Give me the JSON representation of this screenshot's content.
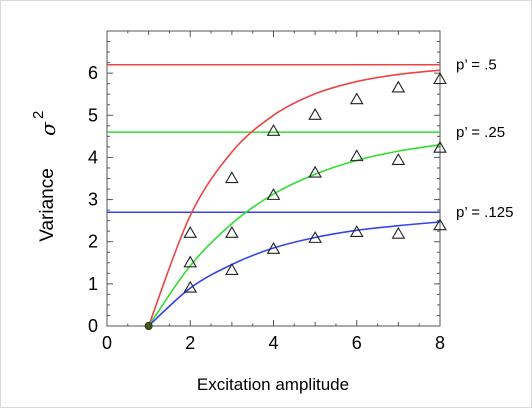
{
  "chart_data": {
    "type": "line",
    "xlabel": "Excitation amplitude",
    "ylabel": "Variance",
    "ylabel_symbol": "σ",
    "ylabel_exponent": "2",
    "xlim": [
      0,
      8
    ],
    "ylim": [
      0,
      7
    ],
    "x_ticks": [
      "0",
      "2",
      "4",
      "6",
      "8"
    ],
    "y_ticks": [
      "0",
      "1",
      "2",
      "3",
      "4",
      "5",
      "6"
    ],
    "grid": false,
    "legend": "right, inline labels",
    "series": [
      {
        "label": "p’ = .5",
        "color": "#ee4444",
        "asymptote": 6.2,
        "curve_x": [
          1,
          2,
          3,
          4,
          5,
          6,
          7,
          8
        ],
        "curve_y": [
          0.0,
          2.62,
          4.13,
          5.0,
          5.51,
          5.8,
          5.97,
          6.07
        ],
        "points_x": [
          2,
          3,
          4,
          5,
          6,
          7,
          8
        ],
        "points_y": [
          2.2,
          3.5,
          4.62,
          5.0,
          5.37,
          5.65,
          5.85
        ]
      },
      {
        "label": "p’ = .25",
        "color": "#33dd33",
        "asymptote": 4.6,
        "curve_x": [
          1,
          2,
          3,
          4,
          5,
          6,
          7,
          8
        ],
        "curve_y": [
          0.0,
          1.43,
          2.43,
          3.13,
          3.6,
          3.93,
          4.15,
          4.3
        ],
        "points_x": [
          2,
          3,
          4,
          5,
          6,
          7,
          8
        ],
        "points_y": [
          1.5,
          2.2,
          3.1,
          3.63,
          4.02,
          3.93,
          4.22
        ]
      },
      {
        "label": "p’ = .125",
        "color": "#3344ee",
        "asymptote": 2.7,
        "curve_x": [
          1,
          2,
          3,
          4,
          5,
          6,
          7,
          8
        ],
        "curve_y": [
          0.0,
          0.9,
          1.46,
          1.85,
          2.1,
          2.27,
          2.38,
          2.47
        ],
        "points_x": [
          2,
          3,
          4,
          5,
          6,
          7,
          8
        ],
        "points_y": [
          0.9,
          1.32,
          1.82,
          2.08,
          2.22,
          2.18,
          2.38
        ]
      }
    ],
    "origin_point": {
      "x": 1,
      "y": 0,
      "color": "#3f5a18"
    }
  }
}
